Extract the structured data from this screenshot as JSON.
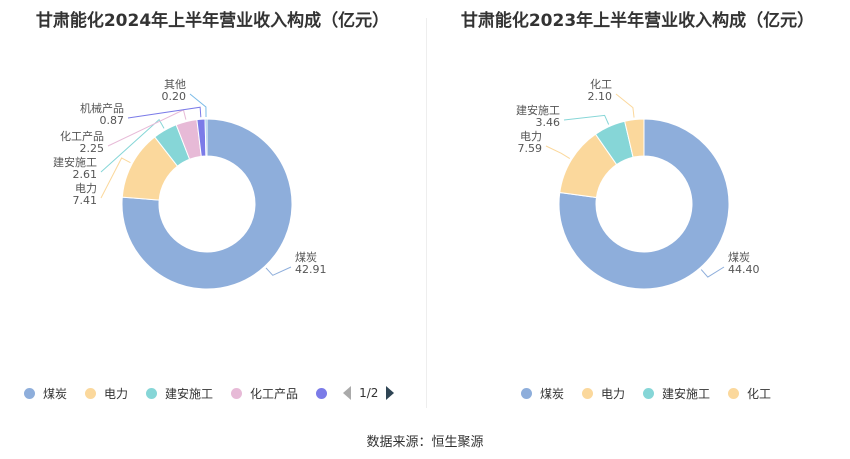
{
  "colors": {
    "coal": "#8eaedb",
    "power": "#fbd89c",
    "construction": "#86d6d7",
    "chemical_products": "#e7bad7",
    "other": "#7b7be8",
    "chemical": "#fbd89c"
  },
  "chart_data": [
    {
      "type": "pie",
      "title": "甘肃能化2024年上半年营业收入构成（亿元）",
      "slices": [
        {
          "name": "煤炭",
          "value": 42.91,
          "label": "42.91",
          "color": "#8eaedb"
        },
        {
          "name": "电力",
          "value": 7.41,
          "label": "7.41",
          "color": "#fbd89c"
        },
        {
          "name": "建安施工",
          "value": 2.61,
          "label": "2.61",
          "color": "#86d6d7"
        },
        {
          "name": "化工产品",
          "value": 2.25,
          "label": "2.25",
          "color": "#e7bad7"
        },
        {
          "name": "机械产品",
          "value": 0.87,
          "label": "0.87",
          "color": "#7b7be8"
        },
        {
          "name": "其他",
          "value": 0.2,
          "label": "0.20",
          "color": "#7bbbe8"
        }
      ],
      "legend": {
        "items": [
          "煤炭",
          "电力",
          "建安施工",
          "化工产品",
          ""
        ],
        "colors": [
          "#8eaedb",
          "#fbd89c",
          "#86d6d7",
          "#e7bad7",
          "#7b7be8"
        ],
        "page": "1/2",
        "position": "bottom"
      }
    },
    {
      "type": "pie",
      "title": "甘肃能化2023年上半年营业收入构成（亿元）",
      "slices": [
        {
          "name": "煤炭",
          "value": 44.4,
          "label": "44.40",
          "color": "#8eaedb"
        },
        {
          "name": "电力",
          "value": 7.59,
          "label": "7.59",
          "color": "#fbd89c"
        },
        {
          "name": "建安施工",
          "value": 3.46,
          "label": "3.46",
          "color": "#86d6d7"
        },
        {
          "name": "化工",
          "value": 2.1,
          "label": "2.10",
          "color": "#fbd89c"
        }
      ],
      "legend": {
        "items": [
          "煤炭",
          "电力",
          "建安施工",
          "化工"
        ],
        "colors": [
          "#8eaedb",
          "#fbd89c",
          "#86d6d7",
          "#fbd89c"
        ],
        "position": "bottom"
      }
    }
  ],
  "source": "数据来源：恒生聚源"
}
